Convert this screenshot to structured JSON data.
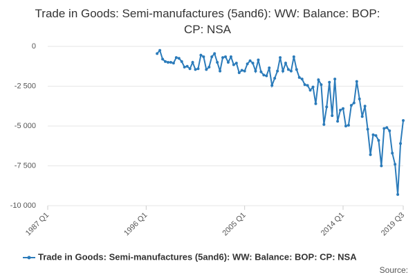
{
  "chart_data": {
    "type": "line",
    "title": "Trade in Goods: Semi-manufactures (5and6): WW: Balance: BOP: CP: NSA",
    "x": [
      1997,
      1997.25,
      1997.5,
      1997.75,
      1998,
      1998.25,
      1998.5,
      1998.75,
      1999,
      1999.25,
      1999.5,
      1999.75,
      2000,
      2000.25,
      2000.5,
      2000.75,
      2001,
      2001.25,
      2001.5,
      2001.75,
      2002,
      2002.25,
      2002.5,
      2002.75,
      2003,
      2003.25,
      2003.5,
      2003.75,
      2004,
      2004.25,
      2004.5,
      2004.75,
      2005,
      2005.25,
      2005.5,
      2005.75,
      2006,
      2006.25,
      2006.5,
      2006.75,
      2007,
      2007.25,
      2007.5,
      2007.75,
      2008,
      2008.25,
      2008.5,
      2008.75,
      2009,
      2009.25,
      2009.5,
      2009.75,
      2010,
      2010.25,
      2010.5,
      2010.75,
      2011,
      2011.25,
      2011.5,
      2011.75,
      2012,
      2012.25,
      2012.5,
      2012.75,
      2013,
      2013.25,
      2013.5,
      2013.75,
      2014,
      2014.25,
      2014.5,
      2014.75,
      2015,
      2015.25,
      2015.5,
      2015.75,
      2016,
      2016.25,
      2016.5,
      2016.75,
      2017,
      2017.25,
      2017.5,
      2017.75,
      2018,
      2018.25,
      2018.5,
      2018.75,
      2019,
      2019.25,
      2019.5
    ],
    "series": [
      {
        "name": "Trade in Goods: Semi-manufactures (5and6): WW: Balance: BOP: CP: NSA",
        "color": "#2b7bba",
        "values": [
          -450,
          -250,
          -800,
          -950,
          -1000,
          -1000,
          -1050,
          -700,
          -750,
          -950,
          -1300,
          -1250,
          -1400,
          -1000,
          -1450,
          -1400,
          -550,
          -650,
          -1450,
          -1300,
          -650,
          -450,
          -1000,
          -1550,
          -700,
          -650,
          -1000,
          -650,
          -1150,
          -1050,
          -1650,
          -1500,
          -1550,
          -1100,
          -900,
          -1050,
          -1550,
          -850,
          -1600,
          -1800,
          -1850,
          -1350,
          -2450,
          -2000,
          -1550,
          -700,
          -1550,
          -1050,
          -1450,
          -1550,
          -650,
          -1450,
          -1950,
          -2050,
          -2400,
          -2450,
          -2750,
          -2550,
          -3600,
          -2100,
          -2400,
          -4900,
          -3800,
          -2250,
          -4350,
          -2050,
          -4700,
          -4000,
          -3900,
          -5000,
          -4950,
          -3700,
          -3550,
          -2200,
          -3300,
          -4400,
          -3750,
          -5200,
          -6800,
          -5550,
          -5600,
          -5900,
          -7500,
          -5150,
          -5100,
          -5300,
          -6700,
          -7400,
          -9300,
          -6100,
          -4650
        ]
      }
    ],
    "xlim": [
      1987,
      2019.5
    ],
    "xticks": [
      {
        "value": 1987,
        "label": "1987 Q1"
      },
      {
        "value": 1996,
        "label": "1996 Q1"
      },
      {
        "value": 2005,
        "label": "2005 Q1"
      },
      {
        "value": 2014,
        "label": "2014 Q1"
      },
      {
        "value": 2019.5,
        "label": "2019 Q3"
      }
    ],
    "ylim": [
      -10000,
      0
    ],
    "yticks": [
      {
        "value": -10000,
        "label": "-10 000"
      },
      {
        "value": -7500,
        "label": "-7 500"
      },
      {
        "value": -5000,
        "label": "-5 000"
      },
      {
        "value": -2500,
        "label": "-2 500"
      },
      0
    ],
    "grid": true,
    "source_label": "Source:"
  }
}
